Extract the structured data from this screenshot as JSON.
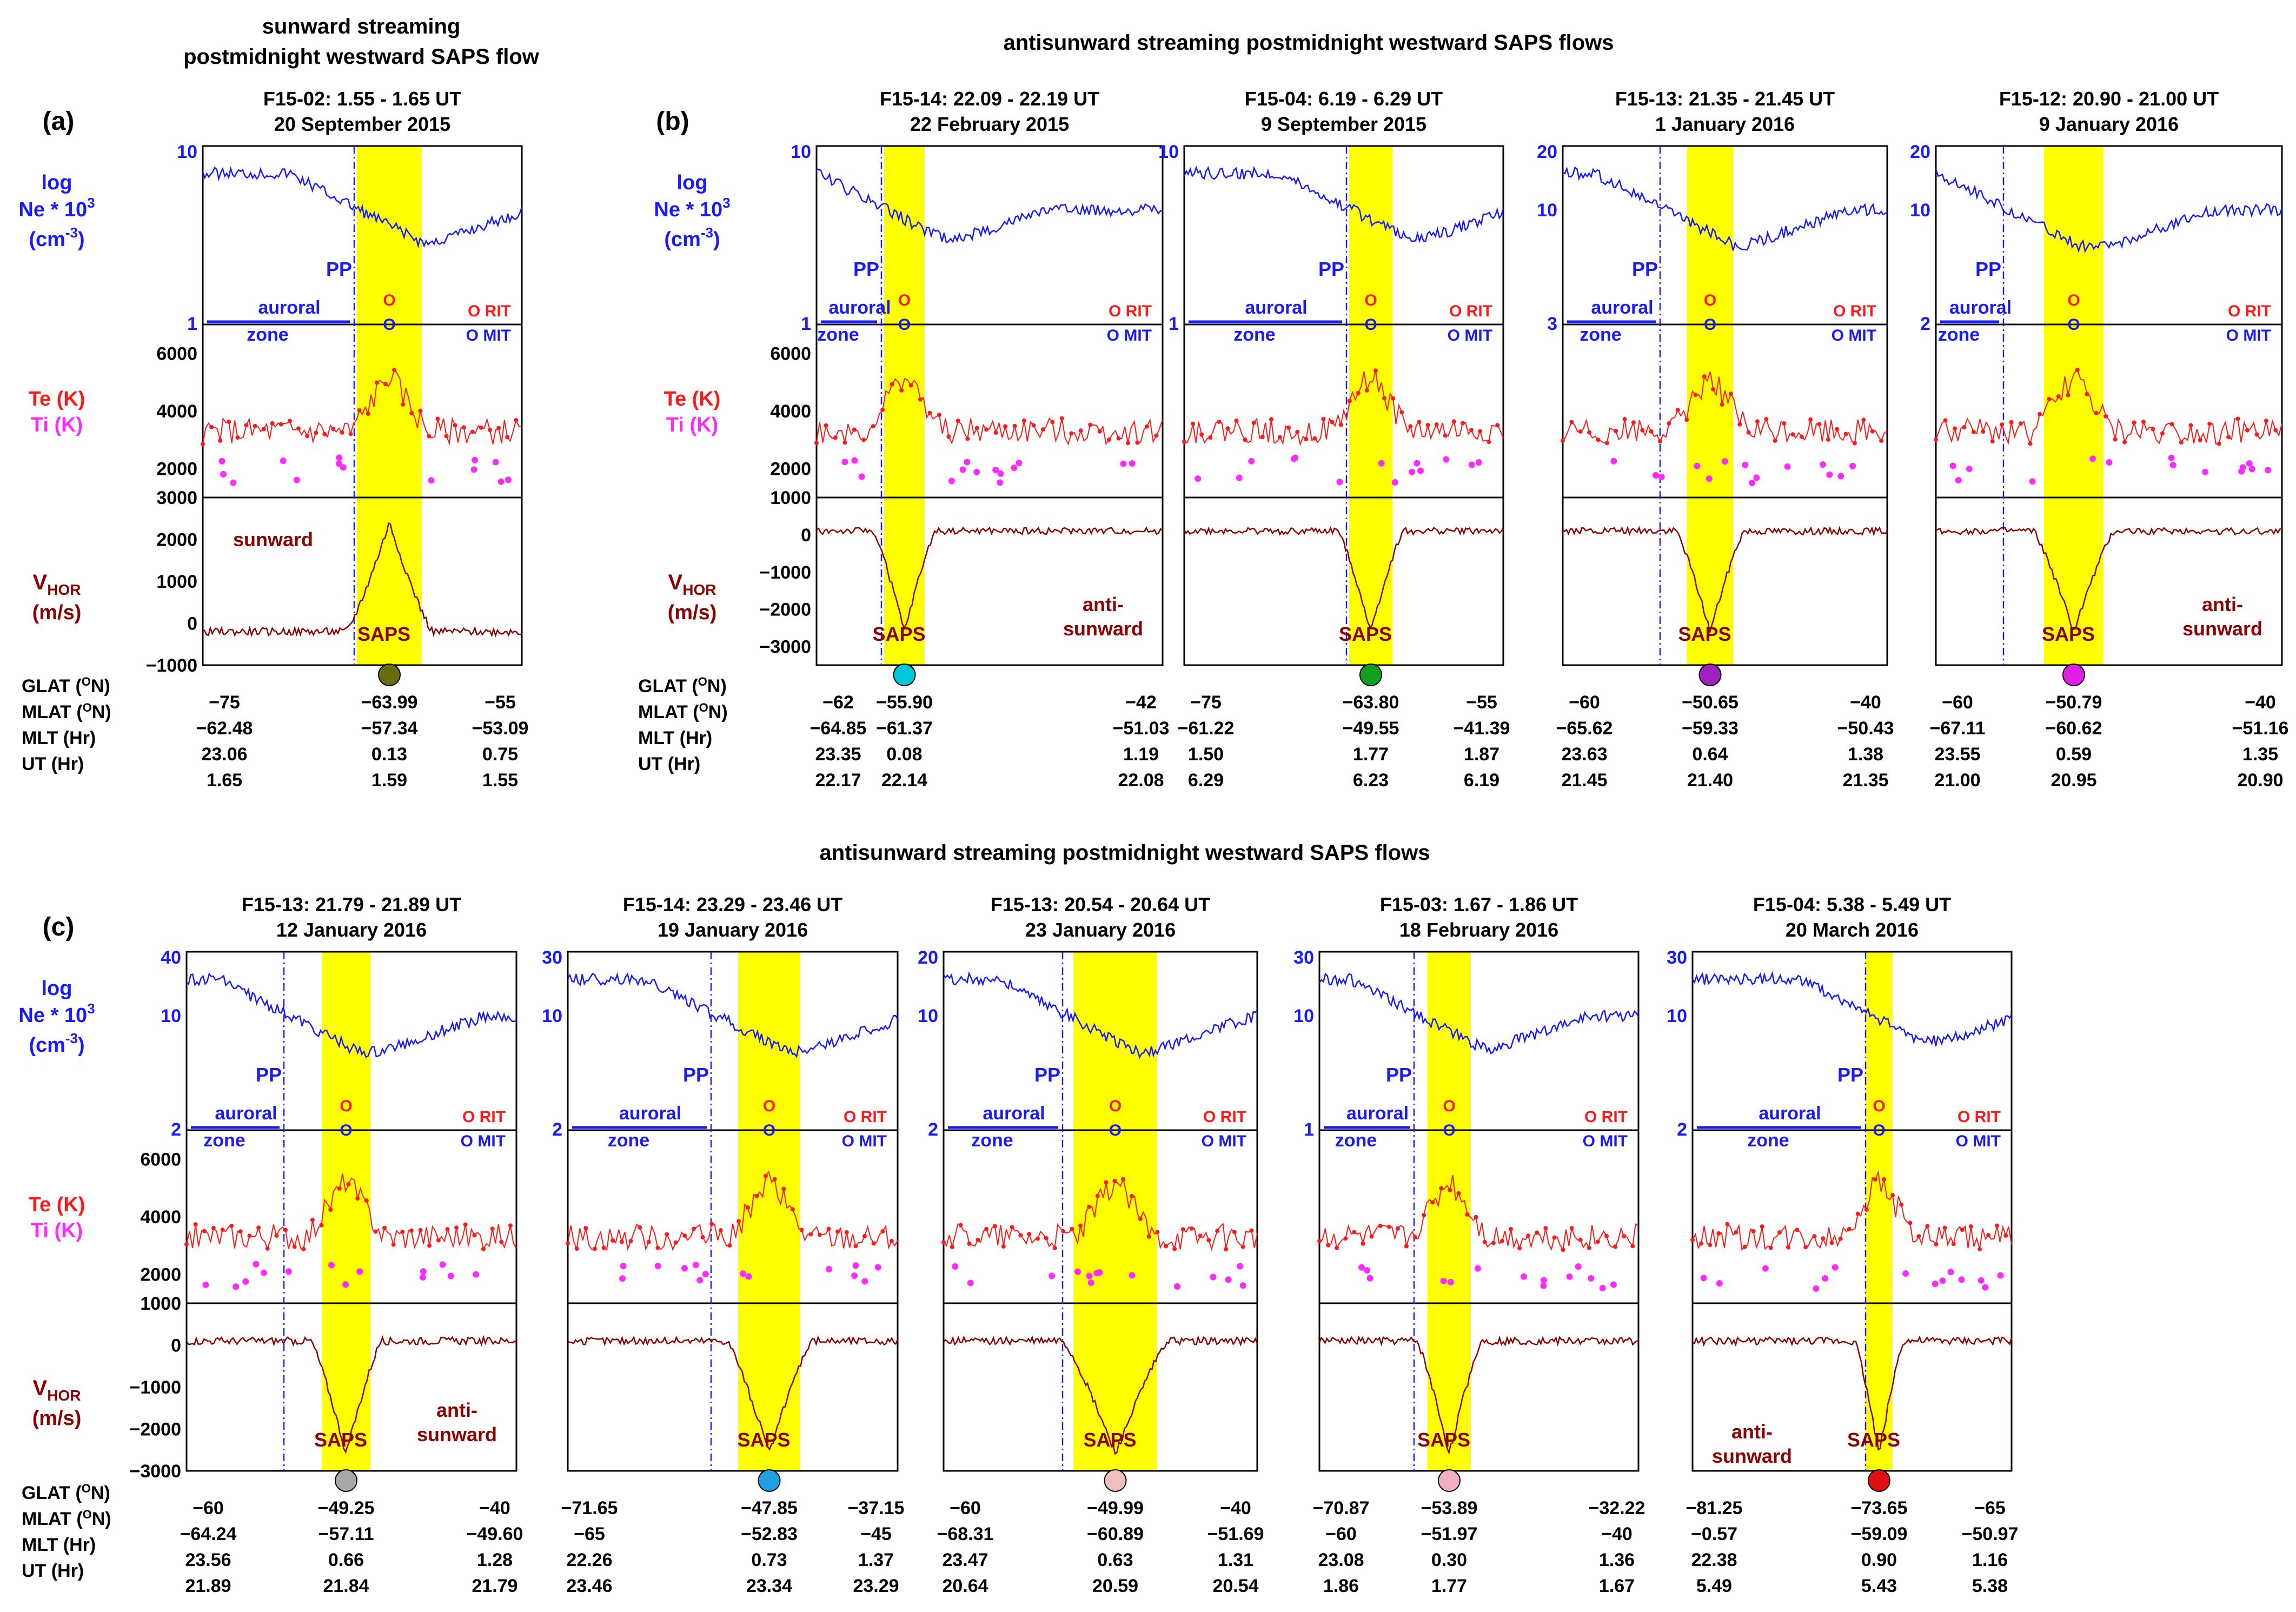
{
  "colors": {
    "ne": "#1a1aff",
    "te": "#ff1a1a",
    "ti": "#ff2bff",
    "vhor": "#8b0000",
    "saps_band": "#ffff00",
    "pp_line": "#1a1aff",
    "black": "#000000"
  },
  "section_titles": {
    "a": "sunward streaming\npostmidnight westward SAPS flow",
    "b": "antisunward streaming postmidnight westward SAPS flows",
    "c": "antisunward streaming postmidnight westward SAPS flows"
  },
  "panel_letters": {
    "a": "(a)",
    "b": "(b)",
    "c": "(c)"
  },
  "row_labels": {
    "log": "log",
    "ne": "Ne * 10",
    "ne_sup": "3",
    "ne_unit": "(cm",
    "ne_unit_sup": "-3",
    "ne_unit_close": ")",
    "te": "Te (K)",
    "ti": "Ti (K)",
    "vhor_v": "V",
    "vhor_sub": "HOR",
    "vhor_unit": "(m/s)",
    "glat": "GLAT (",
    "mlat": "MLAT (",
    "deg": "O",
    "glat_end": "N)",
    "mlat_end": "N)",
    "mlt": "MLT (Hr)",
    "ut": "UT (Hr)"
  },
  "annotations": {
    "pp": "PP",
    "saps": "SAPS",
    "auroral": "auroral",
    "zone": "zone",
    "rit": "O RIT",
    "mit": "O MIT",
    "o": "O",
    "sunward": "sunward",
    "anti": "anti-",
    "antisunward": "sunward"
  },
  "chart_data": [
    {
      "id": "a1",
      "type": "line",
      "title": "F15-02: 1.55 - 1.65 UT",
      "date": "20 September 2015",
      "ne_axis": {
        "top": "10",
        "bottom": "1",
        "ylim": [
          1,
          10
        ]
      },
      "te_axis": {
        "ticks": [
          2000,
          4000,
          6000
        ],
        "ylim": [
          1000,
          7000
        ]
      },
      "v_axis": {
        "ticks": [
          -1000,
          0,
          1000,
          2000,
          3000
        ],
        "labels": [
          "-1000",
          "0",
          "1000",
          "2000",
          "3000"
        ],
        "ylim": [
          -1000,
          3000
        ]
      },
      "flow": "sunward",
      "ball": "#6b6b10",
      "glat": [
        "−75",
        "−63.99",
        "−55"
      ],
      "mlat": [
        "−62.48",
        "−57.34",
        "−53.09"
      ],
      "mlt": [
        "23.06",
        "0.13",
        "0.75"
      ],
      "ut": [
        "1.65",
        "1.59",
        "1.55"
      ]
    },
    {
      "id": "b1",
      "type": "line",
      "title": "F15-14: 22.09 - 22.19 UT",
      "date": "22 February 2015",
      "ne_axis": {
        "top": "10",
        "bottom": "1",
        "ylim": [
          1,
          10
        ]
      },
      "te_axis": {
        "ticks": [
          2000,
          4000,
          6000
        ],
        "ylim": [
          1000,
          7000
        ]
      },
      "v_axis": {
        "ticks": [
          -3000,
          -2000,
          -1000,
          0,
          1000
        ],
        "labels": [
          "-3000",
          "-2000",
          "-1000",
          "0",
          "1000"
        ],
        "ylim": [
          -3500,
          1000
        ]
      },
      "flow": "anti",
      "ball": "#00c8d8",
      "glat": [
        "−62",
        "−55.90",
        "−42"
      ],
      "mlat": [
        "−64.85",
        "−61.37",
        "−51.03"
      ],
      "mlt": [
        "23.35",
        "0.08",
        "1.19"
      ],
      "ut": [
        "22.17",
        "22.14",
        "22.08"
      ]
    },
    {
      "id": "b2",
      "type": "line",
      "title": "F15-04: 6.19 - 6.29 UT",
      "date": "9 September 2015",
      "ne_axis": {
        "top": "10",
        "bottom": "1",
        "ylim": [
          1,
          10
        ]
      },
      "te_axis": {
        "ticks": [],
        "ylim": [
          1000,
          7000
        ]
      },
      "v_axis": {
        "ticks": [],
        "labels": [],
        "ylim": [
          -3500,
          1000
        ]
      },
      "flow": "none",
      "ball": "#10a020",
      "glat": [
        "−75",
        "−63.80",
        "−55"
      ],
      "mlat": [
        "−61.22",
        "−49.55",
        "−41.39"
      ],
      "mlt": [
        "1.50",
        "1.77",
        "1.87"
      ],
      "ut": [
        "6.29",
        "6.23",
        "6.19"
      ]
    },
    {
      "id": "b3",
      "type": "line",
      "title": "F15-13: 21.35 - 21.45 UT",
      "date": "1 January 2016",
      "ne_axis": {
        "top": "20",
        "bottom": "3",
        "mid": "10",
        "ylim": [
          3,
          20
        ]
      },
      "te_axis": {
        "ticks": [],
        "ylim": [
          1000,
          7000
        ]
      },
      "v_axis": {
        "ticks": [],
        "labels": [],
        "ylim": [
          -3500,
          1000
        ]
      },
      "flow": "none",
      "ball": "#a020c0",
      "glat": [
        "−60",
        "−50.65",
        "−40"
      ],
      "mlat": [
        "−65.62",
        "−59.33",
        "−50.43"
      ],
      "mlt": [
        "23.63",
        "0.64",
        "1.38"
      ],
      "ut": [
        "21.45",
        "21.40",
        "21.35"
      ]
    },
    {
      "id": "b4",
      "type": "line",
      "title": "F15-12: 20.90 - 21.00 UT",
      "date": "9 January 2016",
      "ne_axis": {
        "top": "20",
        "bottom": "2",
        "mid": "10",
        "ylim": [
          2,
          20
        ]
      },
      "te_axis": {
        "ticks": [],
        "ylim": [
          1000,
          7000
        ]
      },
      "v_axis": {
        "ticks": [],
        "labels": [],
        "ylim": [
          -3500,
          1000
        ]
      },
      "flow": "anti",
      "ball": "#e020e0",
      "glat": [
        "−60",
        "−50.79",
        "−40"
      ],
      "mlat": [
        "−67.11",
        "−60.62",
        "−51.16"
      ],
      "mlt": [
        "23.55",
        "0.59",
        "1.35"
      ],
      "ut": [
        "21.00",
        "20.95",
        "20.90"
      ]
    },
    {
      "id": "c1",
      "type": "line",
      "title": "F15-13: 21.79 - 21.89 UT",
      "date": "12 January 2016",
      "ne_axis": {
        "top": "40",
        "bottom": "2",
        "mid": "10",
        "ylim": [
          2,
          40
        ]
      },
      "te_axis": {
        "ticks": [
          2000,
          4000,
          6000
        ],
        "ylim": [
          1000,
          7000
        ]
      },
      "v_axis": {
        "ticks": [
          -3000,
          -2000,
          -1000,
          0,
          1000
        ],
        "labels": [
          "-3000",
          "-2000",
          "-1000",
          "0",
          "1000"
        ],
        "ylim": [
          -3000,
          1000
        ]
      },
      "flow": "anti",
      "ball": "#a8a8a8",
      "glat": [
        "−60",
        "−49.25",
        "−40"
      ],
      "mlat": [
        "−64.24",
        "−57.11",
        "−49.60"
      ],
      "mlt": [
        "23.56",
        "0.66",
        "1.28"
      ],
      "ut": [
        "21.89",
        "21.84",
        "21.79"
      ]
    },
    {
      "id": "c2",
      "type": "line",
      "title": "F15-14: 23.29 - 23.46 UT",
      "date": "19 January 2016",
      "ne_axis": {
        "top": "30",
        "bottom": "2",
        "mid": "10",
        "ylim": [
          2,
          30
        ]
      },
      "te_axis": {
        "ticks": [],
        "ylim": [
          1000,
          7000
        ]
      },
      "v_axis": {
        "ticks": [],
        "labels": [],
        "ylim": [
          -3000,
          1000
        ]
      },
      "flow": "none",
      "ball": "#20a0e0",
      "glat": [
        "−71.65",
        "−47.85",
        "−37.15"
      ],
      "mlat": [
        "−65",
        "−52.83",
        "−45"
      ],
      "mlt": [
        "22.26",
        "0.73",
        "1.37"
      ],
      "ut": [
        "23.46",
        "23.34",
        "23.29"
      ]
    },
    {
      "id": "c3",
      "type": "line",
      "title": "F15-13: 20.54 - 20.64 UT",
      "date": "23 January 2016",
      "ne_axis": {
        "top": "20",
        "bottom": "2",
        "mid": "10",
        "ylim": [
          2,
          20
        ]
      },
      "te_axis": {
        "ticks": [],
        "ylim": [
          1000,
          7000
        ]
      },
      "v_axis": {
        "ticks": [],
        "labels": [],
        "ylim": [
          -3000,
          1000
        ]
      },
      "flow": "none",
      "ball": "#f0c0c0",
      "glat": [
        "−60",
        "−49.99",
        "−40"
      ],
      "mlat": [
        "−68.31",
        "−60.89",
        "−51.69"
      ],
      "mlt": [
        "23.47",
        "0.63",
        "1.31"
      ],
      "ut": [
        "20.64",
        "20.59",
        "20.54"
      ]
    },
    {
      "id": "c4",
      "type": "line",
      "title": "F15-03: 1.67 - 1.86 UT",
      "date": "18 February 2016",
      "ne_axis": {
        "top": "30",
        "bottom": "1",
        "mid": "10",
        "ylim": [
          1,
          30
        ]
      },
      "te_axis": {
        "ticks": [],
        "ylim": [
          1000,
          7000
        ]
      },
      "v_axis": {
        "ticks": [],
        "labels": [],
        "ylim": [
          -3000,
          1000
        ]
      },
      "flow": "none",
      "ball": "#f0b0c0",
      "glat": [
        "−70.87",
        "−53.89",
        "−32.22"
      ],
      "mlat": [
        "−60",
        "−51.97",
        "−40"
      ],
      "mlt": [
        "23.08",
        "0.30",
        "1.36"
      ],
      "ut": [
        "1.86",
        "1.77",
        "1.67"
      ]
    },
    {
      "id": "c5",
      "type": "line",
      "title": "F15-04: 5.38 - 5.49 UT",
      "date": "20 March 2016",
      "ne_axis": {
        "top": "30",
        "bottom": "2",
        "mid": "10",
        "ylim": [
          2,
          30
        ]
      },
      "te_axis": {
        "ticks": [],
        "ylim": [
          1000,
          7000
        ]
      },
      "v_axis": {
        "ticks": [],
        "labels": [],
        "ylim": [
          -3000,
          1000
        ]
      },
      "flow": "anti-left",
      "ball": "#e01010",
      "glat": [
        "−81.25",
        "−73.65",
        "−65"
      ],
      "mlat": [
        "−0.57",
        "−59.09",
        "−50.97"
      ],
      "mlt": [
        "22.38",
        "0.90",
        "1.16"
      ],
      "ut": [
        "5.49",
        "5.43",
        "5.38"
      ]
    }
  ]
}
